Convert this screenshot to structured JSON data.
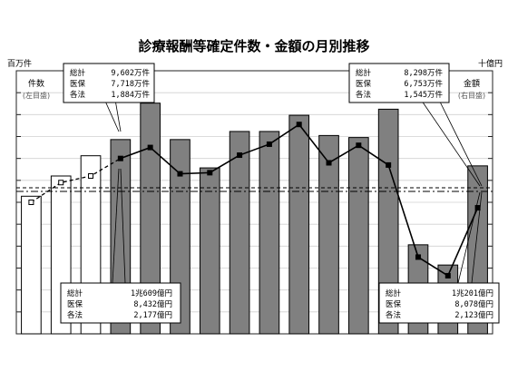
{
  "chart_data": {
    "type": "bar",
    "title": "診療報酬等確定件数・金額の月別推移",
    "left_unit": "百万件",
    "right_unit": "十億円",
    "left_axis_label": "件数",
    "left_axis_sub": "(左目盛)",
    "right_axis_label": "金額",
    "right_axis_sub": "(右目盛)",
    "series": [
      {
        "name": "件数",
        "style": "line",
        "values": [
          92.0,
          93.8,
          94.4,
          96.0,
          97.0,
          94.6,
          94.7,
          96.3,
          97.3,
          99.1,
          95.6,
          97.2,
          95.4,
          87.0,
          85.3,
          91.5
        ]
      },
      {
        "name": "金額",
        "style": "bar",
        "values": [
          990,
          1040,
          1090,
          1130,
          1220,
          1130,
          1060,
          1150,
          1150,
          1190,
          1140,
          1135,
          1205,
          870,
          820,
          1065
        ]
      }
    ],
    "bar_fill_pattern": [
      "white",
      "white",
      "white",
      "gray",
      "gray",
      "gray",
      "gray",
      "gray",
      "gray",
      "gray",
      "gray",
      "gray",
      "gray",
      "gray",
      "gray",
      "gray"
    ],
    "line_dashed_until_index": 3,
    "left_ylim": [
      80,
      104
    ],
    "right_ylim": [
      650,
      1300
    ],
    "grid": true,
    "reference_lines": [
      "dashed",
      "dash-dot"
    ],
    "callouts": [
      {
        "rows": [
          [
            "総計",
            "9,602万件"
          ],
          [
            "医保",
            "7,718万件"
          ],
          [
            "各法",
            "1,884万件"
          ]
        ]
      },
      {
        "rows": [
          [
            "総計",
            "8,298万件"
          ],
          [
            "医保",
            "6,753万件"
          ],
          [
            "各法",
            "1,545万件"
          ]
        ]
      },
      {
        "rows": [
          [
            "総計",
            "1兆609億円"
          ],
          [
            "医保",
            "8,432億円"
          ],
          [
            "各法",
            "2,177億円"
          ]
        ]
      },
      {
        "rows": [
          [
            "総計",
            "1兆201億円"
          ],
          [
            "医保",
            "8,078億円"
          ],
          [
            "各法",
            "2,123億円"
          ]
        ]
      }
    ]
  }
}
